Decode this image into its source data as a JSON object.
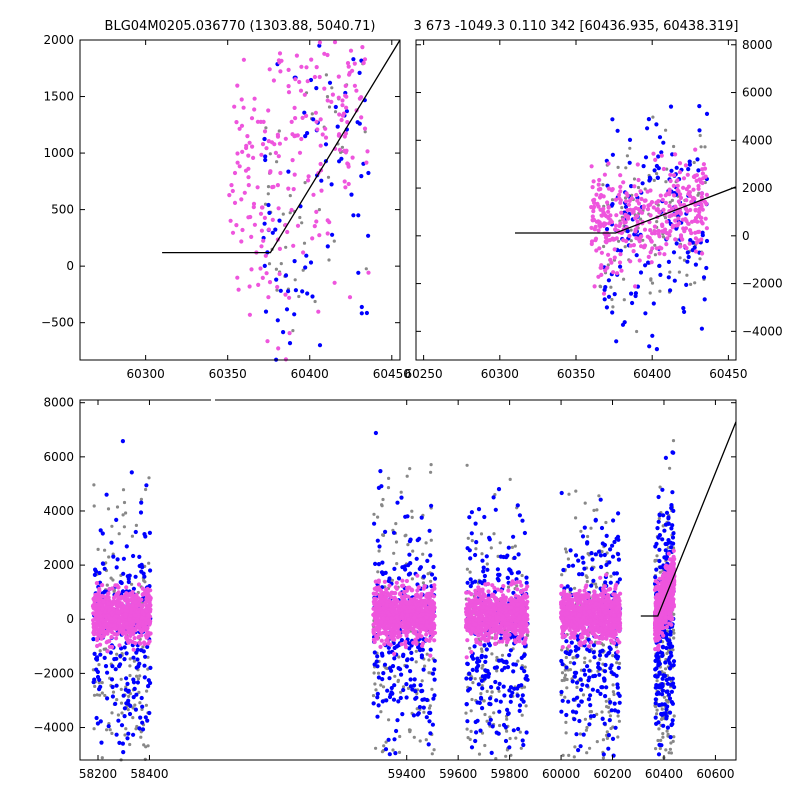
{
  "chart_data": [
    {
      "id": "top-left",
      "type": "scatter",
      "title": "BLG04M0205.036770 (1303.88, 5040.71)",
      "xlim": [
        60260,
        60455
      ],
      "ylim": [
        -830,
        2000
      ],
      "xticks": [
        60300,
        60350,
        60400,
        60450
      ],
      "yticks": [
        -500,
        0,
        500,
        1000,
        1500,
        2000
      ],
      "ytick_side": "left",
      "model_line": {
        "x": [
          60310,
          60376,
          60457
        ],
        "y": [
          120,
          120,
          2000
        ]
      },
      "series": [
        {
          "name": "grey",
          "color": "#888888",
          "x_range": [
            60370,
            60435
          ],
          "center": 400,
          "spread": 650,
          "count": 60,
          "seed": 11
        },
        {
          "name": "blue",
          "color": "#0000ff",
          "x_range": [
            60370,
            60436
          ],
          "center": 500,
          "spread": 800,
          "count": 90,
          "seed": 23
        },
        {
          "name": "pink",
          "color": "#ee55dd",
          "x_range": [
            60350,
            60436
          ],
          "center": 700,
          "spread": 700,
          "count": 260,
          "seed": 37
        }
      ]
    },
    {
      "id": "top-right",
      "type": "scatter",
      "title": "3 673 -1049.3 0.110 342 [60436.935, 60438.319]",
      "xlim": [
        60245,
        60455
      ],
      "ylim": [
        -5200,
        8200
      ],
      "xticks": [
        60250,
        60300,
        60350,
        60400,
        60450
      ],
      "yticks": [
        -4000,
        -2000,
        0,
        2000,
        4000,
        6000,
        8000
      ],
      "ytick_side": "right",
      "model_line": {
        "x": [
          60310,
          60376,
          60457
        ],
        "y": [
          120,
          120,
          2050
        ]
      },
      "series": [
        {
          "name": "grey",
          "color": "#888888",
          "x_range": [
            60365,
            60435
          ],
          "center": 0,
          "spread": 1800,
          "count": 120,
          "seed": 41
        },
        {
          "name": "blue",
          "color": "#0000ff",
          "x_range": [
            60368,
            60436
          ],
          "center": 100,
          "spread": 2200,
          "count": 170,
          "seed": 53
        },
        {
          "name": "pink",
          "color": "#ee55dd",
          "x_range": [
            60360,
            60436
          ],
          "center": 500,
          "spread": 900,
          "count": 380,
          "seed": 67
        }
      ]
    },
    {
      "id": "bottom",
      "type": "scatter",
      "title": "",
      "xlim": [
        58130,
        60680
      ],
      "ylim": [
        -5200,
        8100
      ],
      "xticks": [
        58200,
        58400,
        59400,
        59600,
        59800,
        60000,
        60200,
        60400,
        60600
      ],
      "yticks": [
        -4000,
        -2000,
        0,
        2000,
        4000,
        6000,
        8000
      ],
      "ytick_side": "left",
      "model_line": {
        "x": [
          60310,
          60376,
          60700
        ],
        "y": [
          120,
          120,
          7300
        ]
      },
      "seasons": [
        [
          58180,
          58405
        ],
        [
          59270,
          59510
        ],
        [
          59630,
          59870
        ],
        [
          60000,
          60230
        ],
        [
          60365,
          60440
        ]
      ],
      "series": [
        {
          "name": "grey",
          "color": "#888888",
          "center": -1500,
          "spread": 3000,
          "count": 900,
          "seed": 71
        },
        {
          "name": "blue",
          "color": "#0000ff",
          "center": -600,
          "spread": 2200,
          "count": 1300,
          "seed": 83
        },
        {
          "name": "pink",
          "color": "#ee55dd",
          "center": 150,
          "spread": 450,
          "count": 4200,
          "seed": 97
        }
      ]
    }
  ]
}
